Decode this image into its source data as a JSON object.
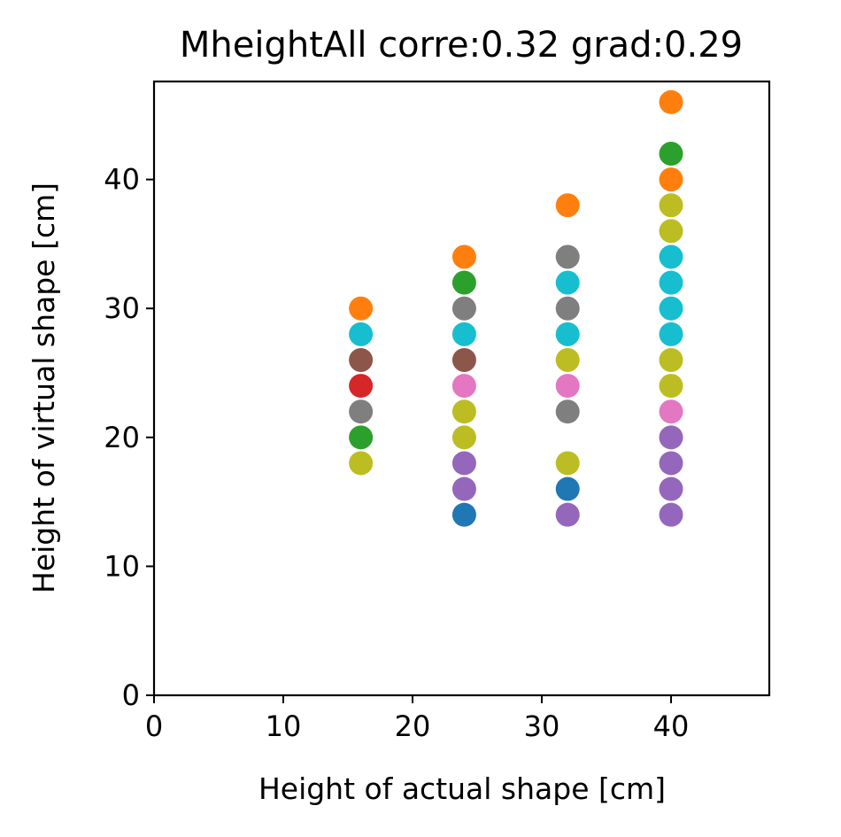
{
  "chart_data": {
    "type": "scatter",
    "title": "MheightAll corre:0.32 grad:0.29",
    "xlabel": "Height of actual shape [cm]",
    "ylabel": "Height of virtual shape [cm]",
    "xlim": [
      0,
      47.6
    ],
    "ylim": [
      0,
      47.6
    ],
    "xticks": [
      "0",
      "10",
      "20",
      "30",
      "40"
    ],
    "yticks": [
      "0",
      "10",
      "20",
      "30",
      "40"
    ],
    "grid": false,
    "legend": "none",
    "points": [
      {
        "x": 16,
        "y": 30,
        "color": "#ff7f0e"
      },
      {
        "x": 16,
        "y": 28,
        "color": "#17becf"
      },
      {
        "x": 16,
        "y": 26,
        "color": "#8c564b"
      },
      {
        "x": 16,
        "y": 24,
        "color": "#d62728"
      },
      {
        "x": 16,
        "y": 22,
        "color": "#7f7f7f"
      },
      {
        "x": 16,
        "y": 20,
        "color": "#2ca02c"
      },
      {
        "x": 16,
        "y": 18,
        "color": "#bcbd22"
      },
      {
        "x": 24,
        "y": 34,
        "color": "#ff7f0e"
      },
      {
        "x": 24,
        "y": 32,
        "color": "#2ca02c"
      },
      {
        "x": 24,
        "y": 30,
        "color": "#7f7f7f"
      },
      {
        "x": 24,
        "y": 28,
        "color": "#17becf"
      },
      {
        "x": 24,
        "y": 26,
        "color": "#8c564b"
      },
      {
        "x": 24,
        "y": 24,
        "color": "#e377c2"
      },
      {
        "x": 24,
        "y": 22,
        "color": "#bcbd22"
      },
      {
        "x": 24,
        "y": 20,
        "color": "#bcbd22"
      },
      {
        "x": 24,
        "y": 18,
        "color": "#9467bd"
      },
      {
        "x": 24,
        "y": 16,
        "color": "#9467bd"
      },
      {
        "x": 24,
        "y": 14,
        "color": "#1f77b4"
      },
      {
        "x": 32,
        "y": 38,
        "color": "#ff7f0e"
      },
      {
        "x": 32,
        "y": 34,
        "color": "#7f7f7f"
      },
      {
        "x": 32,
        "y": 32,
        "color": "#17becf"
      },
      {
        "x": 32,
        "y": 30,
        "color": "#7f7f7f"
      },
      {
        "x": 32,
        "y": 28,
        "color": "#17becf"
      },
      {
        "x": 32,
        "y": 26,
        "color": "#bcbd22"
      },
      {
        "x": 32,
        "y": 24,
        "color": "#e377c2"
      },
      {
        "x": 32,
        "y": 22,
        "color": "#7f7f7f"
      },
      {
        "x": 32,
        "y": 18,
        "color": "#bcbd22"
      },
      {
        "x": 32,
        "y": 16,
        "color": "#1f77b4"
      },
      {
        "x": 32,
        "y": 14,
        "color": "#9467bd"
      },
      {
        "x": 40,
        "y": 46,
        "color": "#ff7f0e"
      },
      {
        "x": 40,
        "y": 42,
        "color": "#2ca02c"
      },
      {
        "x": 40,
        "y": 40,
        "color": "#ff7f0e"
      },
      {
        "x": 40,
        "y": 38,
        "color": "#bcbd22"
      },
      {
        "x": 40,
        "y": 36,
        "color": "#bcbd22"
      },
      {
        "x": 40,
        "y": 34,
        "color": "#17becf"
      },
      {
        "x": 40,
        "y": 32,
        "color": "#17becf"
      },
      {
        "x": 40,
        "y": 30,
        "color": "#17becf"
      },
      {
        "x": 40,
        "y": 28,
        "color": "#17becf"
      },
      {
        "x": 40,
        "y": 26,
        "color": "#bcbd22"
      },
      {
        "x": 40,
        "y": 24,
        "color": "#bcbd22"
      },
      {
        "x": 40,
        "y": 22,
        "color": "#e377c2"
      },
      {
        "x": 40,
        "y": 20,
        "color": "#9467bd"
      },
      {
        "x": 40,
        "y": 18,
        "color": "#9467bd"
      },
      {
        "x": 40,
        "y": 16,
        "color": "#9467bd"
      },
      {
        "x": 40,
        "y": 14,
        "color": "#9467bd"
      }
    ]
  }
}
